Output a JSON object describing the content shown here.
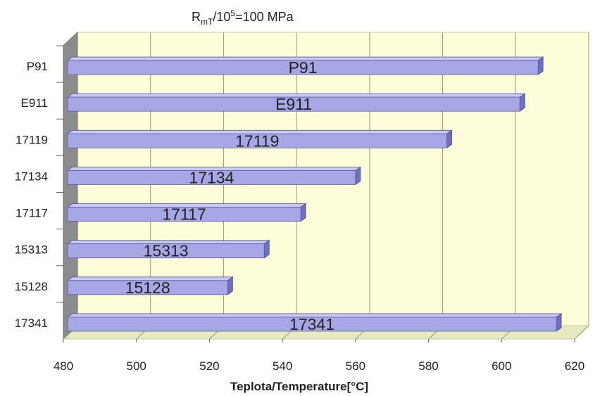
{
  "chart_data": {
    "type": "bar",
    "orientation": "horizontal",
    "title_main": "R",
    "title_sub": "mT",
    "title_mid": "/10",
    "title_sup": "5",
    "title_end": "=100 MPa",
    "xlabel": "Teplota/Temperature[°C]",
    "ylabel": "",
    "xlim": [
      480,
      620
    ],
    "xticks": [
      480,
      500,
      520,
      540,
      560,
      580,
      600,
      620
    ],
    "categories": [
      "P91",
      "E911",
      "17119",
      "17134",
      "17117",
      "15313",
      "15128",
      "17341"
    ],
    "values": [
      610,
      605,
      585,
      560,
      545,
      535,
      525,
      615
    ],
    "bar_labels": [
      "P91",
      "E911",
      "17119",
      "17134",
      "17117",
      "15313",
      "15128",
      "17341"
    ],
    "grid": "vertical",
    "colors": {
      "bar_front": "#a7a7e6",
      "bar_top": "#c9c9f2",
      "bar_side": "#6e6ec2",
      "plot_back": "#fdfdd9",
      "plot_floor": "#e9e9bf",
      "left_wall": "#8c8c8c",
      "grid": "#9a9a7a"
    }
  }
}
